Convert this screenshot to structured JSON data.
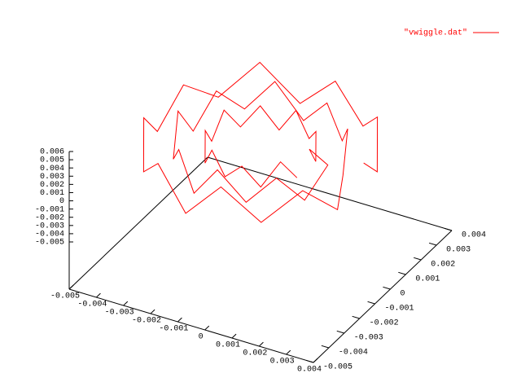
{
  "chart_data": {
    "type": "line3d",
    "xlim": [
      -0.005,
      0.004
    ],
    "xticks": [
      -0.005,
      -0.004,
      -0.003,
      -0.002,
      -0.001,
      0,
      0.001,
      0.002,
      0.003,
      0.004
    ],
    "ylim": [
      -0.005,
      0.004
    ],
    "yticks": [
      -0.005,
      -0.004,
      -0.003,
      -0.002,
      -0.001,
      0,
      0.001,
      0.002,
      0.003,
      0.004
    ],
    "zlim": [
      -0.005,
      0.006
    ],
    "zticks": [
      -0.005,
      -0.004,
      -0.003,
      -0.002,
      -0.001,
      0,
      0.001,
      0.002,
      0.003,
      0.004,
      0.005,
      0.006
    ],
    "legend": "top-right",
    "series": [
      {
        "name": "\"vwiggle.dat\"",
        "color": "#ff0000",
        "x": [
          0.0033,
          0.00307,
          0.00243,
          0.0014,
          0.00015,
          -0.00115,
          -0.0024,
          -0.00343,
          -0.00407,
          -0.0043,
          -0.00407,
          -0.00343,
          -0.0024,
          -0.00115,
          0.00015,
          0.0014,
          0.00243,
          0.00307,
          0.00226,
          0.00192,
          0.0013,
          0.00046,
          -0.0005,
          -0.00146,
          -0.0023,
          -0.00292,
          -0.00326,
          -0.00326,
          -0.00292,
          -0.0023,
          -0.00146,
          -0.0005,
          0.00046,
          0.0013,
          0.00192,
          0.00226,
          0.0013,
          0.00119,
          0.00089,
          0.0004,
          -0.00019,
          -0.00081,
          -0.0014,
          -0.00189,
          -0.00219,
          -0.0023,
          -0.00219,
          -0.00189,
          -0.0014,
          -0.00081,
          -0.00019,
          0.0004,
          0.00089,
          0.00119
        ],
        "y": [
          -0.0005,
          0.00079,
          0.00193,
          0.00281,
          0.00322,
          0.00322,
          0.00281,
          0.00193,
          0.00079,
          -0.0005,
          -0.00179,
          -0.00293,
          -0.00381,
          -0.00422,
          -0.00422,
          -0.00381,
          -0.00293,
          -0.00179,
          -1e-05,
          0.0009,
          0.00164,
          0.00213,
          0.0023,
          0.00213,
          0.00164,
          0.0009,
          -1e-05,
          -0.00099,
          -0.0019,
          -0.00264,
          -0.00313,
          -0.0033,
          -0.00313,
          -0.00264,
          -0.0019,
          -0.00099,
          -0.0005,
          0.00011,
          0.00065,
          0.00107,
          0.00126,
          0.00126,
          0.00107,
          0.00065,
          0.00011,
          -0.0005,
          -0.00111,
          -0.00165,
          -0.00207,
          -0.00226,
          -0.00226,
          -0.00207,
          -0.00165,
          -0.00111
        ],
        "z": [
          0.0048,
          0.0012,
          0.0052,
          0.0015,
          0.005,
          0.001,
          0.0055,
          0.0018,
          0.0047,
          0.0011,
          0.0053,
          0.0014,
          0.005,
          0.0009,
          0.0054,
          0.0016,
          0.0049,
          0.0012,
          0.0014,
          0.0051,
          0.0017,
          0.0046,
          0.0012,
          0.0053,
          0.002,
          0.0049,
          0.0013,
          0.0055,
          0.0016,
          0.0047,
          0.0011,
          0.0052,
          0.0019,
          0.0048,
          0.0014,
          0.0044,
          0.0045,
          0.0018,
          0.0042,
          0.0021,
          0.0046,
          0.0016,
          0.0043,
          0.002,
          0.0047,
          0.0019,
          0.0044,
          0.0017,
          0.0045,
          0.0022,
          0.0041,
          0.0018,
          0.0046,
          0.002
        ]
      }
    ]
  }
}
